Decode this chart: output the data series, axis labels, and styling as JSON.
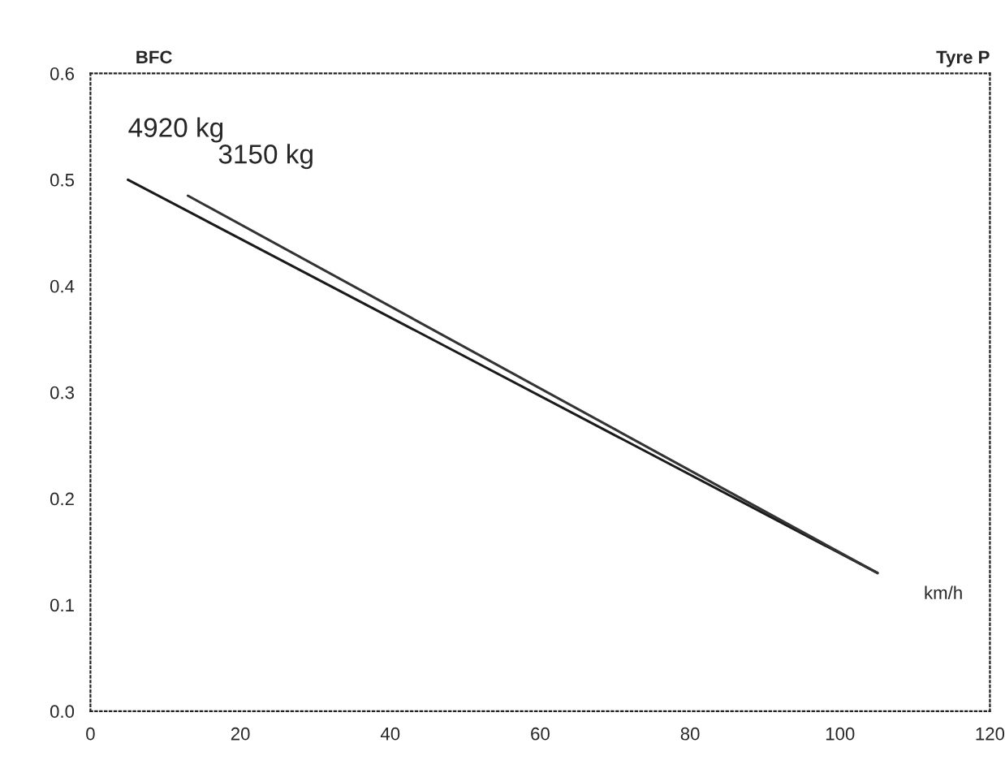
{
  "chart_data": {
    "type": "line",
    "title": "Tyre P",
    "ylabel": "BFC",
    "xlabel": "km/h",
    "xlim": [
      0,
      120
    ],
    "xticks": [
      0,
      20,
      40,
      60,
      80,
      100,
      120
    ],
    "ylim": [
      0.0,
      0.6
    ],
    "yticks": [
      {
        "value": 0,
        "label": "0.0"
      },
      0.1,
      0.2,
      0.3,
      0.4,
      0.5,
      0.6
    ],
    "grid": false,
    "legend": false,
    "line_style": "solid",
    "marker": "none",
    "series": [
      {
        "name": "4920 kg",
        "color": "#1a1a1a",
        "x": [
          5,
          105
        ],
        "values": [
          0.5,
          0.13
        ]
      },
      {
        "name": "3150 kg",
        "color": "#333333",
        "x": [
          13,
          105
        ],
        "values": [
          0.485,
          0.13
        ]
      }
    ]
  }
}
